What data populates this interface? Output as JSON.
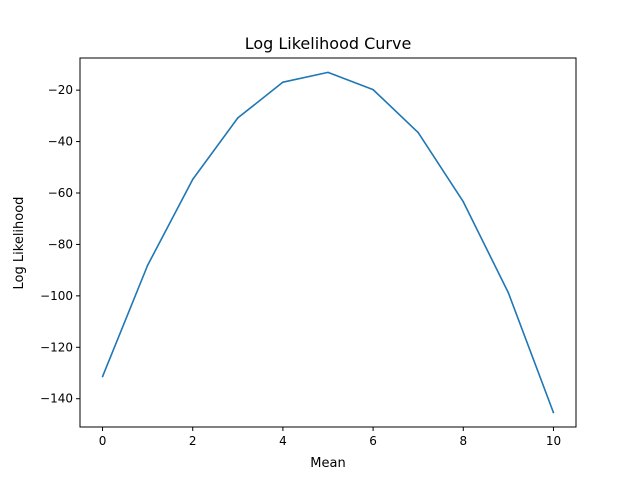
{
  "chart_data": {
    "type": "line",
    "title": "Log Likelihood Curve",
    "xlabel": "Mean",
    "ylabel": "Log Likelihood",
    "xlim": [
      -0.5,
      10.5
    ],
    "ylim": [
      -151,
      -7.5
    ],
    "xticks": [
      0,
      2,
      4,
      6,
      8,
      10
    ],
    "xtick_labels": [
      "0",
      "2",
      "4",
      "6",
      "8",
      "10"
    ],
    "yticks": [
      -140,
      -120,
      -100,
      -80,
      -60,
      -40,
      -20
    ],
    "ytick_labels": [
      "−140",
      "−120",
      "−100",
      "−80",
      "−60",
      "−40",
      "−20"
    ],
    "grid": false,
    "series": [
      {
        "color": "#1f77b4",
        "x": [
          0,
          1,
          2,
          3,
          4,
          5,
          6,
          7,
          8,
          9,
          10
        ],
        "y": [
          -131.4,
          -88.1,
          -54.7,
          -30.8,
          -16.9,
          -13.1,
          -19.8,
          -36.5,
          -63.4,
          -98.8,
          -145.4
        ]
      }
    ]
  }
}
